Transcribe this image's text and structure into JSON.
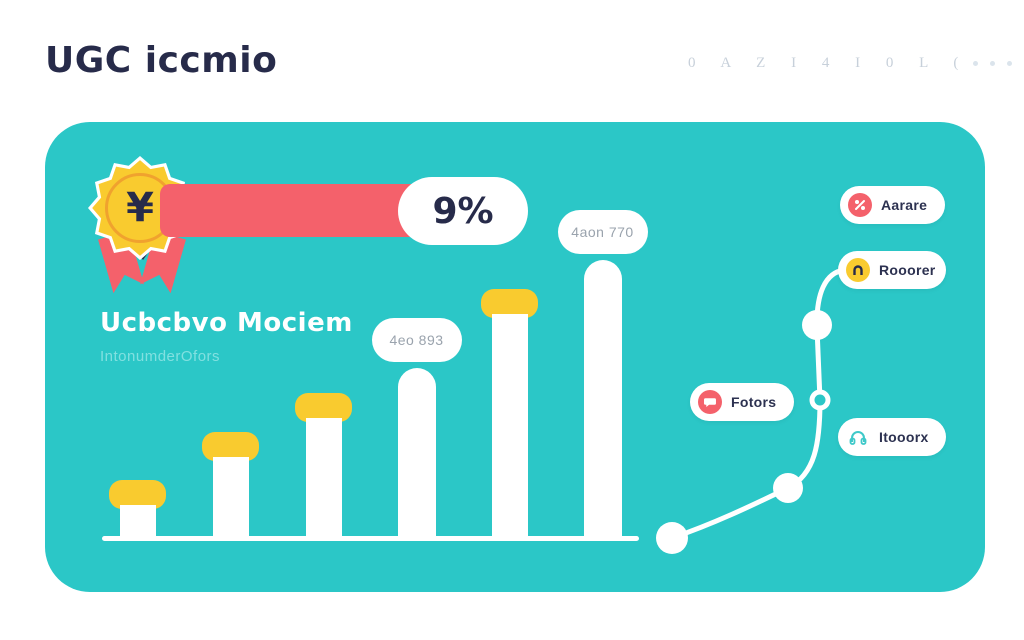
{
  "header": {
    "title": "UGC iccmio",
    "watermark": "0 A Z I 4 I 0 L (",
    "title_color": "#272b4a",
    "watermark_color": "#c7d0da"
  },
  "card": {
    "bg_color": "#2bc7c7",
    "heading": "Ucbcbvo Mociem",
    "subheading": "IntonumderOfors",
    "badge": {
      "symbol": "¥",
      "badge_color": "#f9cb2f",
      "ribbon_color": "#f4616b"
    },
    "progress": {
      "value_label": "9%",
      "bar_color": "#f4616b"
    }
  },
  "chart_data": {
    "type": "bar",
    "title": "",
    "xlabel": "",
    "ylabel": "",
    "ylim": [
      0,
      300
    ],
    "grid": false,
    "bar_color": "#ffffff",
    "cap_color": "#f9cb2f",
    "bars": [
      {
        "value": 58,
        "cap": true,
        "label": ""
      },
      {
        "value": 106,
        "cap": true,
        "label": ""
      },
      {
        "value": 145,
        "cap": true,
        "label": ""
      },
      {
        "value": 170,
        "cap": false,
        "label": "4eo 893"
      },
      {
        "value": 249,
        "cap": true,
        "label": ""
      },
      {
        "value": 278,
        "cap": false,
        "label": "4aon 770"
      }
    ]
  },
  "milestones": [
    {
      "label": "Aarare",
      "icon": "percent-icon",
      "icon_bg": "#f4616b",
      "icon_color": "#ffffff"
    },
    {
      "label": "Rooorer",
      "icon": "magnet-icon",
      "icon_bg": "#f9cb2f",
      "icon_color": "#272b4a"
    },
    {
      "label": "Fotors",
      "icon": "chat-icon",
      "icon_bg": "#f4616b",
      "icon_color": "#ffffff"
    },
    {
      "label": "Itooorx",
      "icon": "headphones-icon",
      "icon_bg": "#ffffff",
      "icon_color": "#3fc9c9"
    }
  ]
}
